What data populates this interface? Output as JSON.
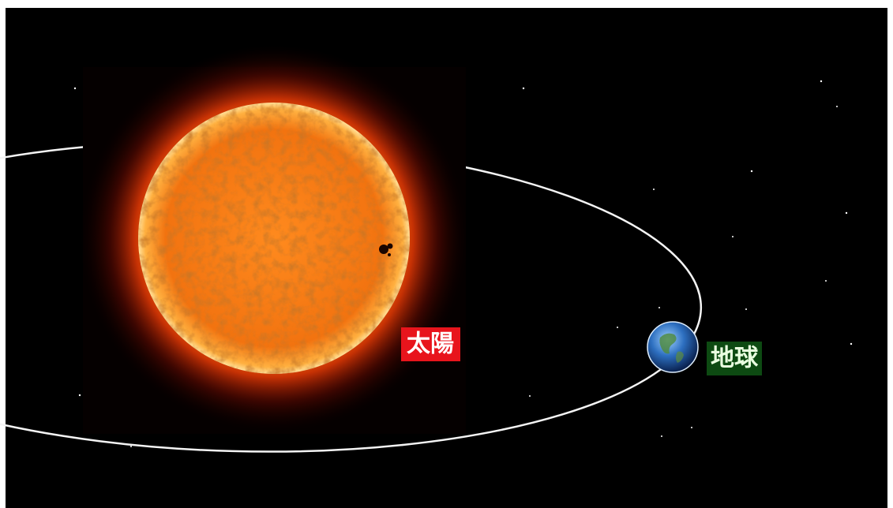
{
  "labels": {
    "sun": "太陽",
    "earth": "地球"
  }
}
